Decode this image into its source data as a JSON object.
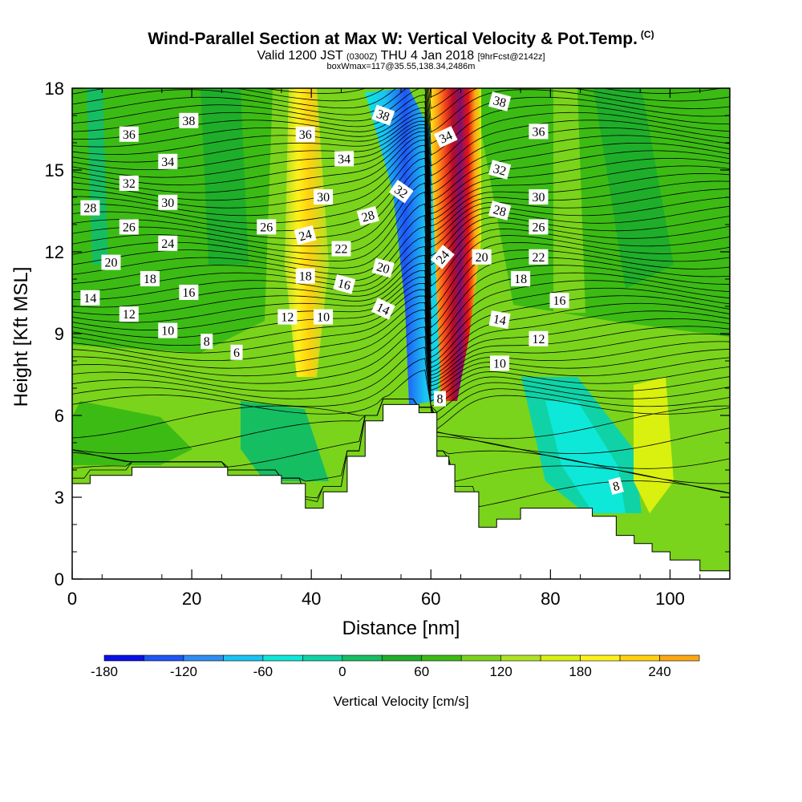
{
  "header": {
    "title": "Wind-Parallel Section at Max W: Vertical Velocity & Pot.Temp.",
    "copyright": "(C)",
    "valid_a": "Valid 1200 JST",
    "valid_utc": "(0300Z)",
    "valid_b": "THU 4 Jan 2018",
    "fcst": "[9hrFcst@2142z]",
    "box": "boxWmax=117@35.55,138.34,2486m"
  },
  "colors": {
    "levels": [
      "#0a10e6",
      "#1f55f5",
      "#2f8ef2",
      "#19c3f4",
      "#0ee8d8",
      "#0fd3a6",
      "#16be62",
      "#1fae2a",
      "#3cbb14",
      "#7ad41b",
      "#b0e224",
      "#daf00e",
      "#fff11a",
      "#ffd10f",
      "#ffa713",
      "#ff7a16",
      "#f7491a",
      "#e61413",
      "#b80d28",
      "#7d1070",
      "#4c0e7e"
    ],
    "terrain": "#ffffff"
  },
  "chart_data": {
    "type": "heatmap",
    "xlabel": "Distance [nm]",
    "ylabel": "Height [Kft MSL]",
    "xlim": [
      0,
      110
    ],
    "ylim": [
      0,
      18
    ],
    "x_ticks": [
      "0",
      "20",
      "40",
      "60",
      "80",
      "100"
    ],
    "y_ticks": [
      "0",
      "3",
      "6",
      "9",
      "12",
      "15",
      "18"
    ],
    "colorbar": {
      "label": "Vertical Velocity [cm/s]",
      "range": [
        -180,
        270
      ],
      "step": 30,
      "tick_labels": [
        "-180",
        "-120",
        "-60",
        "0",
        "60",
        "120",
        "180",
        "240"
      ]
    },
    "terrain_profile": [
      [
        0,
        3.5
      ],
      [
        3,
        3.5
      ],
      [
        3,
        3.8
      ],
      [
        10,
        3.8
      ],
      [
        10,
        4.1
      ],
      [
        26,
        4.1
      ],
      [
        26,
        3.8
      ],
      [
        35,
        3.8
      ],
      [
        35,
        3.5
      ],
      [
        39,
        3.5
      ],
      [
        39,
        2.6
      ],
      [
        42,
        2.6
      ],
      [
        42,
        3.2
      ],
      [
        46,
        3.2
      ],
      [
        46,
        4.5
      ],
      [
        49,
        4.5
      ],
      [
        49,
        5.8
      ],
      [
        52,
        5.8
      ],
      [
        52,
        6.4
      ],
      [
        58,
        6.4
      ],
      [
        58,
        6.1
      ],
      [
        61,
        6.1
      ],
      [
        61,
        4.5
      ],
      [
        63,
        4.5
      ],
      [
        63,
        4.2
      ],
      [
        64,
        4.2
      ],
      [
        64,
        3.2
      ],
      [
        68,
        3.2
      ],
      [
        68,
        1.9
      ],
      [
        71,
        1.9
      ],
      [
        71,
        2.2
      ],
      [
        75,
        2.2
      ],
      [
        75,
        2.6
      ],
      [
        87,
        2.6
      ],
      [
        87,
        2.3
      ],
      [
        91,
        2.3
      ],
      [
        91,
        1.6
      ],
      [
        94,
        1.6
      ],
      [
        94,
        1.3
      ],
      [
        97,
        1.3
      ],
      [
        97,
        1.0
      ],
      [
        100,
        1.0
      ],
      [
        100,
        0.7
      ],
      [
        105,
        0.7
      ],
      [
        105,
        0.3
      ],
      [
        110,
        0.3
      ]
    ],
    "contour_labels": [
      {
        "text": "38",
        "x": 19.5,
        "y": 16.8,
        "rot": 0
      },
      {
        "text": "36",
        "x": 9.5,
        "y": 16.3,
        "rot": 0
      },
      {
        "text": "34",
        "x": 16,
        "y": 15.3,
        "rot": 0
      },
      {
        "text": "32",
        "x": 9.5,
        "y": 14.5,
        "rot": 0
      },
      {
        "text": "30",
        "x": 16,
        "y": 13.8,
        "rot": 0
      },
      {
        "text": "28",
        "x": 3,
        "y": 13.6,
        "rot": 0
      },
      {
        "text": "26",
        "x": 9.5,
        "y": 12.9,
        "rot": 0
      },
      {
        "text": "24",
        "x": 16,
        "y": 12.3,
        "rot": 0
      },
      {
        "text": "20",
        "x": 6.5,
        "y": 11.6,
        "rot": 0
      },
      {
        "text": "18",
        "x": 13,
        "y": 11.0,
        "rot": 0
      },
      {
        "text": "16",
        "x": 19.5,
        "y": 10.5,
        "rot": 0
      },
      {
        "text": "14",
        "x": 3,
        "y": 10.3,
        "rot": 0
      },
      {
        "text": "12",
        "x": 9.5,
        "y": 9.7,
        "rot": 0
      },
      {
        "text": "10",
        "x": 16,
        "y": 9.1,
        "rot": 0
      },
      {
        "text": "8",
        "x": 22.5,
        "y": 8.7,
        "rot": 0
      },
      {
        "text": "6",
        "x": 27.5,
        "y": 8.3,
        "rot": 0
      },
      {
        "text": "26",
        "x": 32.5,
        "y": 12.9,
        "rot": 0
      },
      {
        "text": "36",
        "x": 39,
        "y": 16.3,
        "rot": 0
      },
      {
        "text": "34",
        "x": 45.5,
        "y": 15.4,
        "rot": 0
      },
      {
        "text": "30",
        "x": 42,
        "y": 14.0,
        "rot": 0
      },
      {
        "text": "28",
        "x": 49.5,
        "y": 13.3,
        "rot": -15
      },
      {
        "text": "24",
        "x": 39,
        "y": 12.6,
        "rot": -15
      },
      {
        "text": "22",
        "x": 45,
        "y": 12.1,
        "rot": 0
      },
      {
        "text": "20",
        "x": 52,
        "y": 11.4,
        "rot": 15
      },
      {
        "text": "18",
        "x": 39,
        "y": 11.1,
        "rot": 0
      },
      {
        "text": "16",
        "x": 45.5,
        "y": 10.8,
        "rot": 15
      },
      {
        "text": "14",
        "x": 52,
        "y": 9.9,
        "rot": 25
      },
      {
        "text": "12",
        "x": 36,
        "y": 9.6,
        "rot": 0
      },
      {
        "text": "10",
        "x": 42,
        "y": 9.6,
        "rot": 0
      },
      {
        "text": "38",
        "x": 52,
        "y": 17.0,
        "rot": 20
      },
      {
        "text": "32",
        "x": 55,
        "y": 14.2,
        "rot": 35
      },
      {
        "text": "34",
        "x": 62.5,
        "y": 16.2,
        "rot": -25
      },
      {
        "text": "24",
        "x": 62,
        "y": 11.8,
        "rot": -50
      },
      {
        "text": "8",
        "x": 61.5,
        "y": 6.6,
        "rot": 0
      },
      {
        "text": "38",
        "x": 71.5,
        "y": 17.5,
        "rot": 15
      },
      {
        "text": "36",
        "x": 78,
        "y": 16.4,
        "rot": 0
      },
      {
        "text": "32",
        "x": 71.5,
        "y": 15.0,
        "rot": 15
      },
      {
        "text": "30",
        "x": 78,
        "y": 14.0,
        "rot": 0
      },
      {
        "text": "28",
        "x": 71.5,
        "y": 13.5,
        "rot": 15
      },
      {
        "text": "26",
        "x": 78,
        "y": 12.9,
        "rot": 0
      },
      {
        "text": "20",
        "x": 68.5,
        "y": 11.8,
        "rot": 0
      },
      {
        "text": "22",
        "x": 78,
        "y": 11.8,
        "rot": 0
      },
      {
        "text": "18",
        "x": 75,
        "y": 11.0,
        "rot": 0
      },
      {
        "text": "16",
        "x": 81.5,
        "y": 10.2,
        "rot": 0
      },
      {
        "text": "14",
        "x": 71.5,
        "y": 9.5,
        "rot": 10
      },
      {
        "text": "12",
        "x": 78,
        "y": 8.8,
        "rot": 0
      },
      {
        "text": "10",
        "x": 71.5,
        "y": 7.9,
        "rot": 0
      },
      {
        "text": "8",
        "x": 91,
        "y": 3.4,
        "rot": -15
      }
    ]
  }
}
